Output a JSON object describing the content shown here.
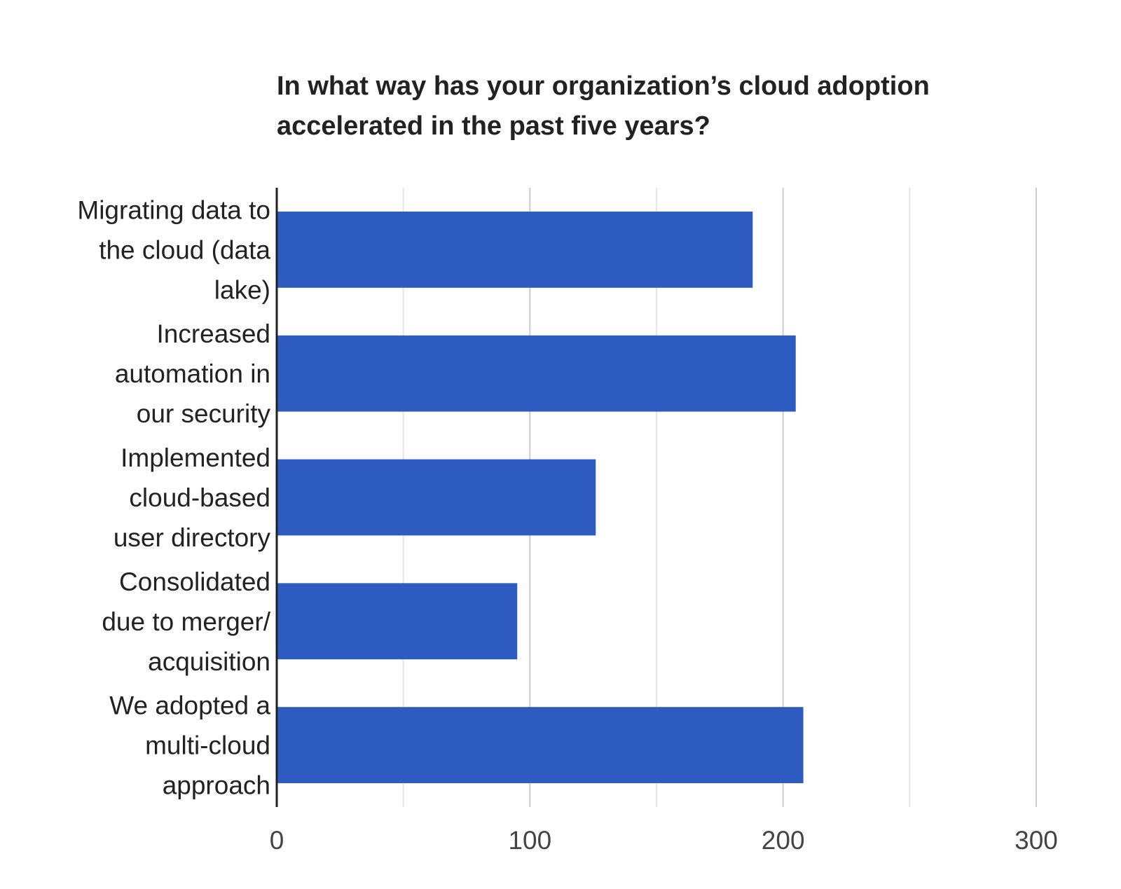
{
  "chart_data": {
    "type": "bar",
    "orientation": "horizontal",
    "title": "In what way has your organization’s cloud adoption accelerated in the past five years?",
    "title_lines": [
      "In what way has your organization’s cloud adoption",
      "accelerated in the past five years?"
    ],
    "categories": [
      "Migrating data to the cloud (data lake)",
      "Increased automation in our security",
      "Implemented cloud-based user directory",
      "Consolidated due to merger/ acquisition",
      "We adopted a multi-cloud approach"
    ],
    "category_lines": [
      [
        "Migrating data to",
        "the cloud (data",
        "lake)"
      ],
      [
        "Increased",
        "automation in",
        "our security"
      ],
      [
        "Implemented",
        "cloud-based",
        "user directory"
      ],
      [
        "Consolidated",
        "due to merger/",
        "acquisition"
      ],
      [
        "We adopted a",
        "multi-cloud",
        "approach"
      ]
    ],
    "values": [
      188,
      205,
      126,
      95,
      208
    ],
    "xlim": [
      0,
      300
    ],
    "xticks": [
      0,
      100,
      200,
      300
    ],
    "minor_gridlines": [
      50,
      150,
      250
    ],
    "xlabel": "",
    "ylabel": "",
    "grid": true,
    "legend": "none",
    "bar_color": "#2e5bbf"
  }
}
